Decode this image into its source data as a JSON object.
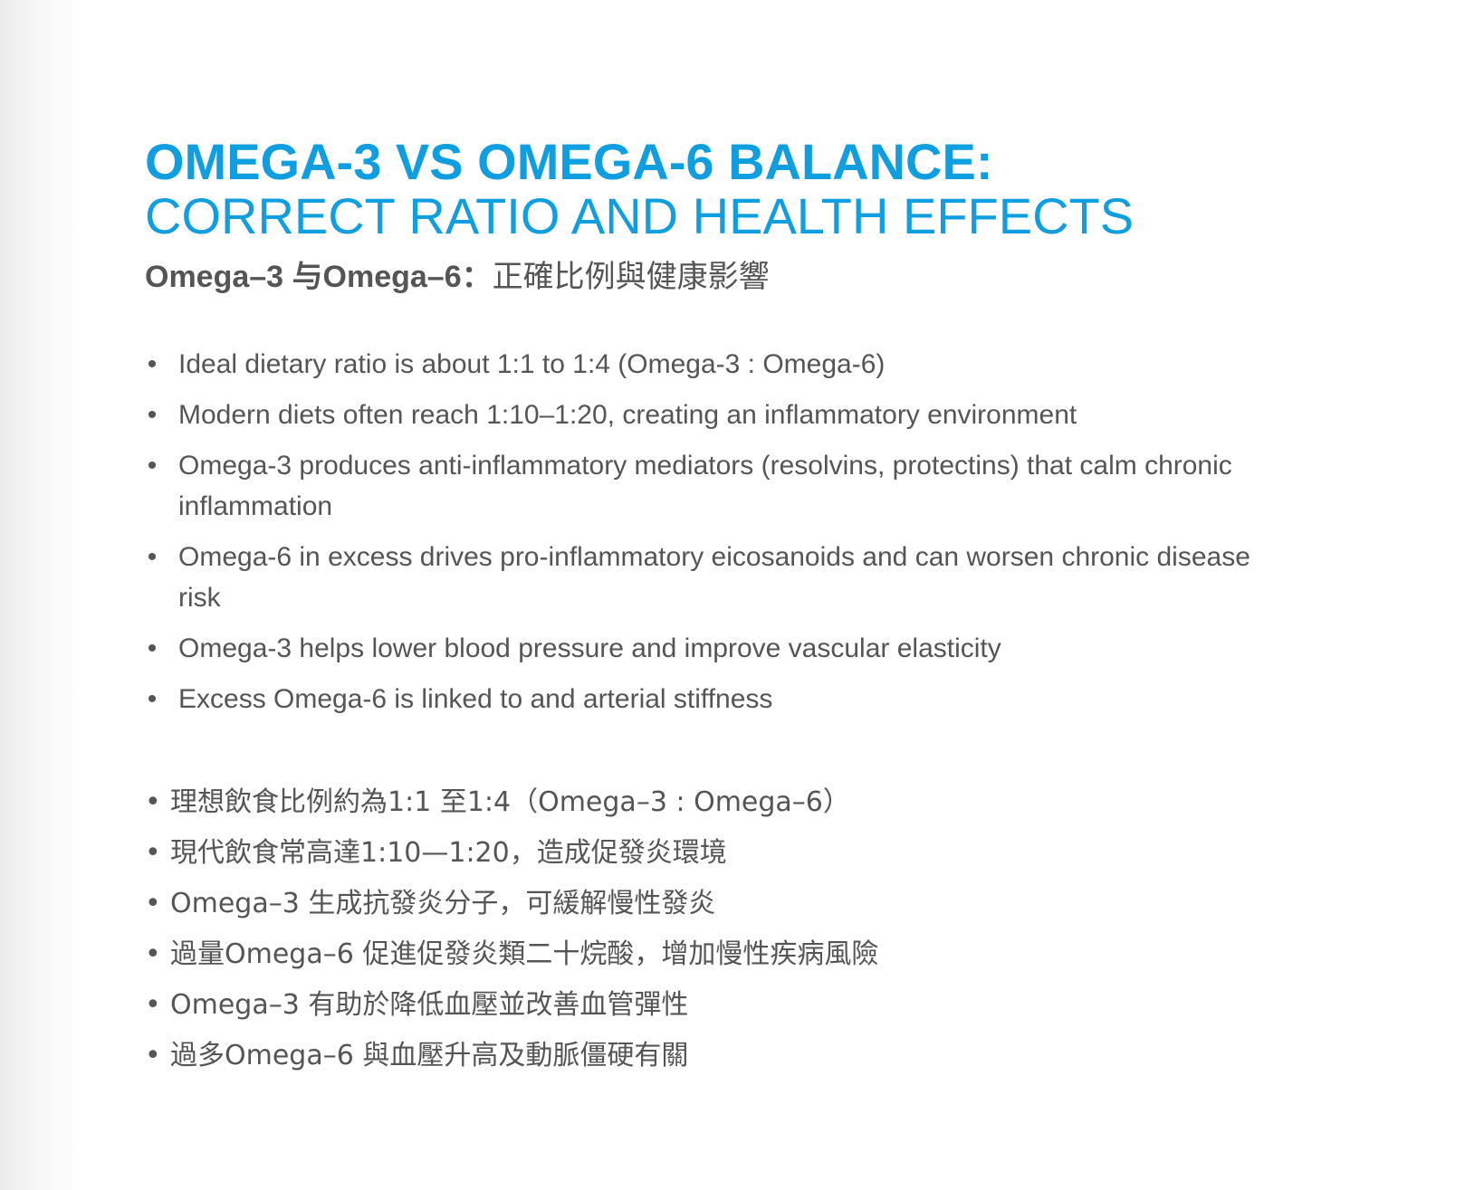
{
  "colors": {
    "accent": "#0f9ee0",
    "body_text": "#555555",
    "background": "#ffffff"
  },
  "title": {
    "line1": "OMEGA-3 VS OMEGA-6 BALANCE:",
    "line2": "CORRECT RATIO AND HEALTH EFFECTS"
  },
  "subtitle": {
    "en": "Omega–3 与Omega–6：",
    "zh": "正確比例與健康影響"
  },
  "bullet_glyph": "•",
  "english_points": [
    "Ideal dietary ratio is about 1:1 to 1:4 (Omega-3 : Omega-6)",
    "Modern diets often reach 1:10–1:20, creating an inflammatory environment",
    "Omega-3 produces anti-inflammatory mediators (resolvins, protectins) that calm chronic inflammation",
    "Omega-6 in excess drives pro-inflammatory eicosanoids and can worsen chronic disease risk",
    "Omega-3 helps lower blood pressure and improve vascular elasticity",
    "Excess Omega-6 is linked to and arterial stiffness"
  ],
  "chinese_points": [
    "理想飲食比例約為1:1 至1:4（Omega–3 : Omega–6）",
    "現代飲食常高達1:10—1:20，造成促發炎環境",
    "Omega–3 生成抗發炎分子，可緩解慢性發炎",
    "過量Omega–6 促進促發炎類二十烷酸，增加慢性疾病風險",
    "Omega–3 有助於降低血壓並改善血管彈性",
    "過多Omega–6 與血壓升高及動脈僵硬有關"
  ]
}
